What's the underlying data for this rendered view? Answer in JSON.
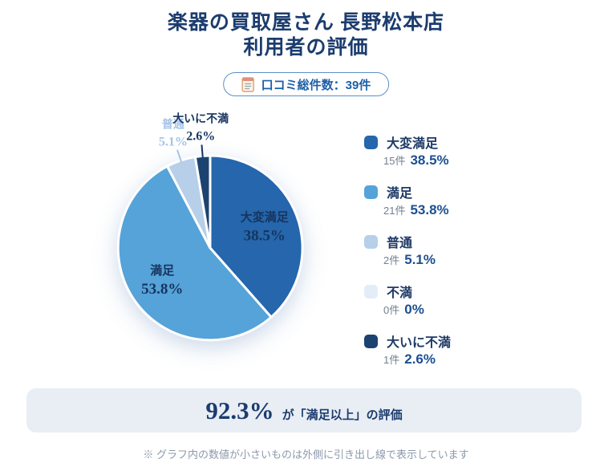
{
  "page": {
    "title_line1": "楽器の買取屋さん 長野松本店",
    "title_line2": "利用者の評価",
    "badge": {
      "icon": "memo-icon",
      "label": "口コミ総件数：39件"
    },
    "banner": {
      "highlight": "92.3%",
      "rest": "が「満足以上」の評価"
    },
    "footnote": "※ グラフ内の数値が小さいものは外側に引き出し線で表示しています"
  },
  "colors": {
    "title_navy": "#1b3c6e",
    "badge_border": "#5b8fc9",
    "badge_text": "#1d5fa7",
    "banner_bg": "#e9edf4",
    "footnote_gray": "#8c9aac",
    "legend_label": "#1e3a66",
    "legend_count": "#72808f",
    "legend_pct": "#1d4f91"
  },
  "chart_data": {
    "type": "pie",
    "title": "利用者の評価",
    "total_reviews": 39,
    "total_label": "口コミ総件数：39件",
    "start_angle_deg": 0,
    "direction": "clockwise",
    "legend_position": "right",
    "slices": [
      {
        "label": "大変満足",
        "count": 15,
        "count_label": "15件",
        "pct": 38.5,
        "pct_label": "38.5%",
        "color": "#2566ac",
        "label_placement": "inside",
        "label_color": "#17345e"
      },
      {
        "label": "満足",
        "count": 21,
        "count_label": "21件",
        "pct": 53.8,
        "pct_label": "53.8%",
        "color": "#55a3d8",
        "label_placement": "inside",
        "label_color": "#17345e"
      },
      {
        "label": "普通",
        "count": 2,
        "count_label": "2件",
        "pct": 5.1,
        "pct_label": "5.1%",
        "color": "#b7cfe9",
        "label_placement": "outside",
        "label_color": "#a5c3e7"
      },
      {
        "label": "不満",
        "count": 0,
        "count_label": "0件",
        "pct": 0,
        "pct_label": "0%",
        "color": "#e3edf7",
        "label_placement": "none",
        "label_color": "#17345e"
      },
      {
        "label": "大いに不満",
        "count": 1,
        "count_label": "1件",
        "pct": 2.6,
        "pct_label": "2.6%",
        "color": "#1c4370",
        "label_placement": "outside",
        "label_color": "#17345e"
      }
    ],
    "summary": {
      "value_pct": 92.3,
      "text": "92.3% が「満足以上」の評価"
    }
  }
}
